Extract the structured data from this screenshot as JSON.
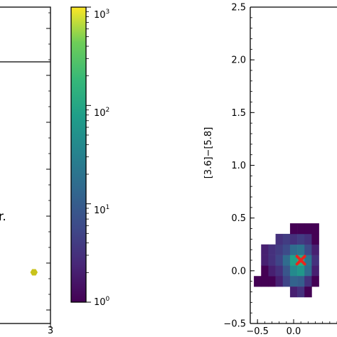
{
  "chart_data": [
    {
      "type": "scatter",
      "title": "",
      "xlabel": "",
      "ylabel": "",
      "xlim_visible": [
        2.0,
        3.0
      ],
      "x_tick_labels": [
        "3"
      ],
      "annotation_text": "r.",
      "horizontal_line": true,
      "points": [
        {
          "x": 2.9,
          "y": "low",
          "color": "#c8c31c",
          "marker": "hexagon"
        }
      ],
      "grid": false
    },
    {
      "type": "colorbar",
      "scale": "log",
      "colormap": "viridis",
      "range": [
        1,
        1000
      ],
      "tick_labels": [
        {
          "base": "10",
          "exp": "3",
          "value": 1000
        },
        {
          "base": "10",
          "exp": "2",
          "value": 100
        },
        {
          "base": "10",
          "exp": "1",
          "value": 10
        },
        {
          "base": "10",
          "exp": "0",
          "value": 1
        }
      ]
    },
    {
      "type": "heatmap",
      "title": "",
      "xlabel": "",
      "ylabel": "[3.6]−[5.8]",
      "xlim": [
        -0.6,
        0.6
      ],
      "ylim": [
        -0.5,
        2.5
      ],
      "x_tick_labels": [
        "−0.5",
        "0.0"
      ],
      "y_tick_labels": [
        "−0.5",
        "0.0",
        "0.5",
        "1.0",
        "1.5",
        "2.0",
        "2.5"
      ],
      "bin_width": 0.1,
      "bin_height": 0.1,
      "cells": [
        {
          "x": -0.5,
          "y": -0.1,
          "count": 1
        },
        {
          "x": -0.4,
          "y": -0.1,
          "count": 1
        },
        {
          "x": -0.3,
          "y": -0.1,
          "count": 1
        },
        {
          "x": -0.4,
          "y": 0.0,
          "count": 1
        },
        {
          "x": -0.3,
          "y": 0.0,
          "count": 2
        },
        {
          "x": -0.2,
          "y": 0.0,
          "count": 3
        },
        {
          "x": -0.1,
          "y": 0.0,
          "count": 8
        },
        {
          "x": 0.0,
          "y": 0.0,
          "count": 40
        },
        {
          "x": 0.1,
          "y": 0.0,
          "count": 60
        },
        {
          "x": 0.2,
          "y": 0.0,
          "count": 15
        },
        {
          "x": 0.3,
          "y": 0.0,
          "count": 2
        },
        {
          "x": -0.2,
          "y": -0.1,
          "count": 2
        },
        {
          "x": -0.1,
          "y": -0.1,
          "count": 5
        },
        {
          "x": 0.0,
          "y": -0.1,
          "count": 12
        },
        {
          "x": 0.1,
          "y": -0.1,
          "count": 10
        },
        {
          "x": 0.2,
          "y": -0.1,
          "count": 3
        },
        {
          "x": 0.3,
          "y": -0.1,
          "count": 1
        },
        {
          "x": 0.0,
          "y": -0.2,
          "count": 2
        },
        {
          "x": 0.1,
          "y": -0.2,
          "count": 3
        },
        {
          "x": 0.2,
          "y": -0.2,
          "count": 1
        },
        {
          "x": -0.4,
          "y": 0.1,
          "count": 2
        },
        {
          "x": -0.3,
          "y": 0.1,
          "count": 3
        },
        {
          "x": -0.2,
          "y": 0.1,
          "count": 5
        },
        {
          "x": -0.1,
          "y": 0.1,
          "count": 15
        },
        {
          "x": 0.0,
          "y": 0.1,
          "count": 80
        },
        {
          "x": 0.1,
          "y": 0.1,
          "count": 120
        },
        {
          "x": 0.2,
          "y": 0.1,
          "count": 20
        },
        {
          "x": 0.3,
          "y": 0.1,
          "count": 3
        },
        {
          "x": -0.4,
          "y": 0.2,
          "count": 2
        },
        {
          "x": -0.3,
          "y": 0.2,
          "count": 3
        },
        {
          "x": -0.2,
          "y": 0.2,
          "count": 4
        },
        {
          "x": -0.1,
          "y": 0.2,
          "count": 6
        },
        {
          "x": 0.0,
          "y": 0.2,
          "count": 15
        },
        {
          "x": 0.1,
          "y": 0.2,
          "count": 20
        },
        {
          "x": 0.2,
          "y": 0.2,
          "count": 6
        },
        {
          "x": 0.3,
          "y": 0.2,
          "count": 2
        },
        {
          "x": -0.2,
          "y": 0.3,
          "count": 3
        },
        {
          "x": -0.1,
          "y": 0.3,
          "count": 4
        },
        {
          "x": 0.0,
          "y": 0.3,
          "count": 3
        },
        {
          "x": 0.1,
          "y": 0.3,
          "count": 4
        },
        {
          "x": 0.2,
          "y": 0.3,
          "count": 3
        },
        {
          "x": 0.3,
          "y": 0.3,
          "count": 1
        },
        {
          "x": 0.0,
          "y": 0.4,
          "count": 1
        },
        {
          "x": 0.1,
          "y": 0.4,
          "count": 1
        },
        {
          "x": 0.2,
          "y": 0.4,
          "count": 1
        },
        {
          "x": 0.3,
          "y": 0.4,
          "count": 1
        }
      ],
      "marker": {
        "x": 0.1,
        "y": 0.1,
        "symbol": "X",
        "color": "#e8261e"
      }
    }
  ]
}
